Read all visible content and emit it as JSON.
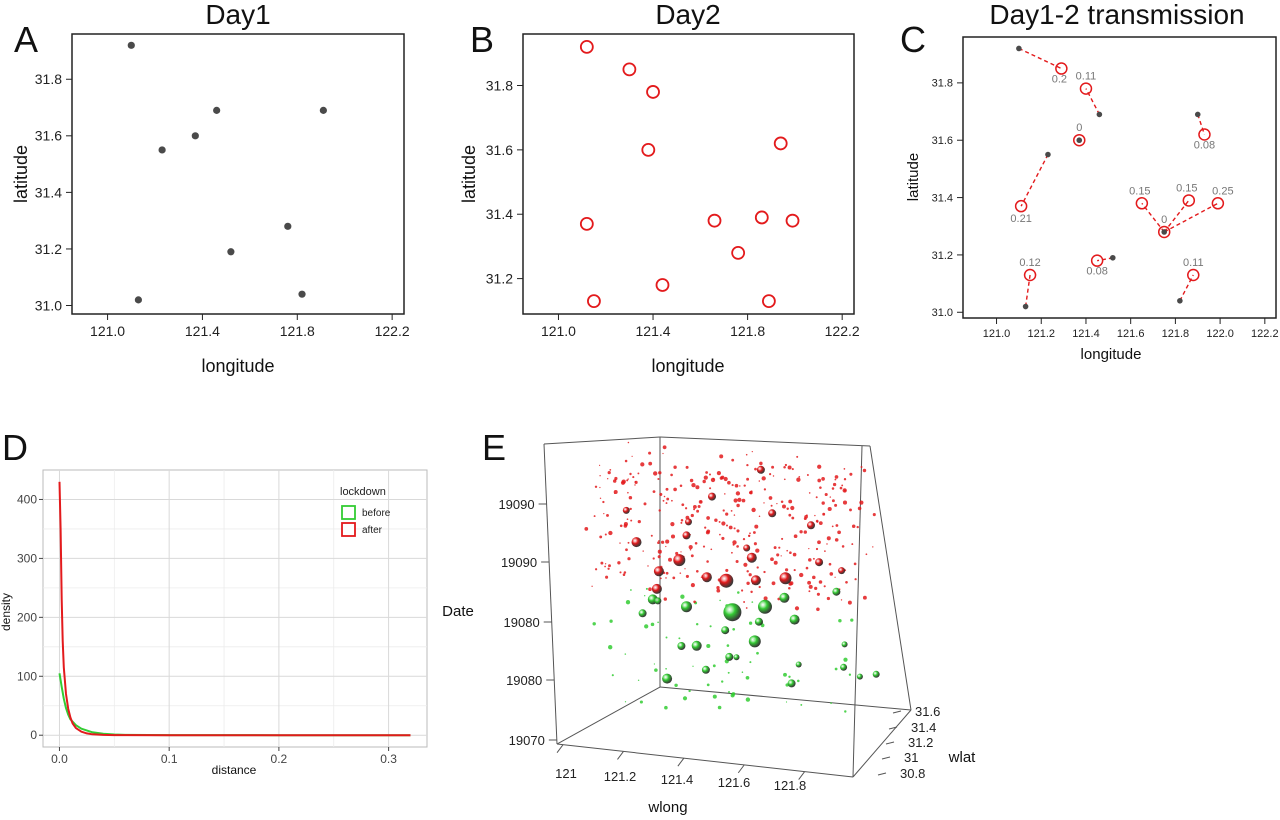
{
  "panels": {
    "A": {
      "letter": "A",
      "title": "Day1",
      "xlabel": "longitude",
      "ylabel": "latitude"
    },
    "B": {
      "letter": "B",
      "title": "Day2",
      "xlabel": "longitude",
      "ylabel": "latitude"
    },
    "C": {
      "letter": "C",
      "title": "Day1-2 transmission",
      "xlabel": "longitude",
      "ylabel": "latitude"
    },
    "D": {
      "letter": "D",
      "xlabel": "distance",
      "ylabel": "density"
    },
    "E": {
      "letter": "E",
      "xlabel": "wlong",
      "ylabel": "wlat",
      "zlabel": "Date"
    }
  },
  "colors": {
    "day1": "#4a4a4a",
    "day2": "#e31a1c",
    "before": "#33cc33",
    "after": "#e31a1c",
    "grid": "#d9d9d9"
  },
  "chart_data": [
    {
      "id": "A",
      "type": "scatter",
      "title": "Day1",
      "xlabel": "longitude",
      "ylabel": "latitude",
      "xlim": [
        120.85,
        122.25
      ],
      "ylim": [
        30.97,
        31.96
      ],
      "xticks": [
        "121.0",
        "121.4",
        "121.8",
        "122.2"
      ],
      "xtick_values": [
        121.0,
        121.4,
        121.8,
        122.2
      ],
      "yticks": [
        "31.0",
        "31.2",
        "31.4",
        "31.6",
        "31.8"
      ],
      "ytick_values": [
        31.0,
        31.2,
        31.4,
        31.6,
        31.8
      ],
      "grid": false,
      "points": [
        [
          121.1,
          31.92
        ],
        [
          121.46,
          31.69
        ],
        [
          121.91,
          31.69
        ],
        [
          121.37,
          31.6
        ],
        [
          121.23,
          31.55
        ],
        [
          121.76,
          31.28
        ],
        [
          121.52,
          31.19
        ],
        [
          121.82,
          31.04
        ],
        [
          121.13,
          31.02
        ]
      ]
    },
    {
      "id": "B",
      "type": "scatter",
      "title": "Day2",
      "xlabel": "longitude",
      "ylabel": "latitude",
      "xlim": [
        120.85,
        122.25
      ],
      "ylim": [
        31.09,
        31.96
      ],
      "xticks": [
        "121.0",
        "121.4",
        "121.8",
        "122.2"
      ],
      "xtick_values": [
        121.0,
        121.4,
        121.8,
        122.2
      ],
      "yticks": [
        "31.2",
        "31.4",
        "31.6",
        "31.8"
      ],
      "ytick_values": [
        31.2,
        31.4,
        31.6,
        31.8
      ],
      "grid": false,
      "points": [
        [
          121.12,
          31.92
        ],
        [
          121.3,
          31.85
        ],
        [
          121.4,
          31.78
        ],
        [
          121.38,
          31.6
        ],
        [
          121.94,
          31.62
        ],
        [
          121.12,
          31.37
        ],
        [
          121.66,
          31.38
        ],
        [
          121.86,
          31.39
        ],
        [
          121.99,
          31.38
        ],
        [
          121.76,
          31.28
        ],
        [
          121.44,
          31.18
        ],
        [
          121.15,
          31.13
        ],
        [
          121.89,
          31.13
        ]
      ]
    },
    {
      "id": "C",
      "type": "scatter",
      "title": "Day1-2 transmission",
      "xlabel": "longitude",
      "ylabel": "latitude",
      "xlim": [
        120.85,
        122.25
      ],
      "ylim": [
        30.98,
        31.96
      ],
      "xticks": [
        "121.0",
        "121.2",
        "121.4",
        "121.6",
        "121.8",
        "122.0",
        "122.2"
      ],
      "xtick_values": [
        121.0,
        121.2,
        121.4,
        121.6,
        121.8,
        122.0,
        122.2
      ],
      "yticks": [
        "31.0",
        "31.2",
        "31.4",
        "31.6",
        "31.8"
      ],
      "ytick_values": [
        31.0,
        31.2,
        31.4,
        31.6,
        31.8
      ],
      "grid": false,
      "sources": [
        [
          121.1,
          31.92
        ],
        [
          121.46,
          31.69
        ],
        [
          121.9,
          31.69
        ],
        [
          121.37,
          31.6
        ],
        [
          121.23,
          31.55
        ],
        [
          121.75,
          31.28
        ],
        [
          121.52,
          31.19
        ],
        [
          121.82,
          31.04
        ],
        [
          121.13,
          31.02
        ]
      ],
      "links": [
        {
          "from": [
            121.1,
            31.92
          ],
          "to": [
            121.29,
            31.85
          ],
          "label": "0.2"
        },
        {
          "from": [
            121.46,
            31.69
          ],
          "to": [
            121.4,
            31.78
          ],
          "label": "0.11"
        },
        {
          "from": [
            121.37,
            31.6
          ],
          "to": [
            121.37,
            31.6
          ],
          "label": "0"
        },
        {
          "from": [
            121.9,
            31.69
          ],
          "to": [
            121.93,
            31.62
          ],
          "label": "0.08"
        },
        {
          "from": [
            121.23,
            31.55
          ],
          "to": [
            121.11,
            31.37
          ],
          "label": "0.21"
        },
        {
          "from": [
            121.75,
            31.28
          ],
          "to": [
            121.65,
            31.38
          ],
          "label": "0.15"
        },
        {
          "from": [
            121.75,
            31.28
          ],
          "to": [
            121.86,
            31.39
          ],
          "label": "0.15"
        },
        {
          "from": [
            121.75,
            31.28
          ],
          "to": [
            121.99,
            31.38
          ],
          "label": "0.25"
        },
        {
          "from": [
            121.75,
            31.28
          ],
          "to": [
            121.75,
            31.28
          ],
          "label": "0"
        },
        {
          "from": [
            121.52,
            31.19
          ],
          "to": [
            121.45,
            31.18
          ],
          "label": "0.08"
        },
        {
          "from": [
            121.13,
            31.02
          ],
          "to": [
            121.15,
            31.13
          ],
          "label": "0.12"
        },
        {
          "from": [
            121.82,
            31.04
          ],
          "to": [
            121.88,
            31.13
          ],
          "label": "0.11"
        }
      ]
    },
    {
      "id": "D",
      "type": "line",
      "xlabel": "distance",
      "ylabel": "density",
      "xlim": [
        -0.015,
        0.335
      ],
      "ylim": [
        -20,
        450
      ],
      "xticks": [
        "0.0",
        "0.1",
        "0.2",
        "0.3"
      ],
      "xtick_values": [
        0.0,
        0.1,
        0.2,
        0.3
      ],
      "yticks": [
        "0",
        "100",
        "200",
        "300",
        "400"
      ],
      "ytick_values": [
        0,
        100,
        200,
        300,
        400
      ],
      "grid": true,
      "legend": {
        "title": "lockdown",
        "placement": "top-right",
        "entries": [
          "before",
          "after"
        ]
      },
      "series": [
        {
          "name": "before",
          "x": [
            0.0,
            0.002,
            0.004,
            0.006,
            0.008,
            0.01,
            0.015,
            0.02,
            0.03,
            0.04,
            0.05,
            0.06,
            0.1,
            0.2,
            0.3,
            0.32
          ],
          "y": [
            105,
            82,
            62,
            46,
            35,
            27,
            17,
            11,
            5,
            2.5,
            1.2,
            0.5,
            0.2,
            0.1,
            0.1,
            0.1
          ]
        },
        {
          "name": "after",
          "x": [
            0.0,
            0.001,
            0.002,
            0.003,
            0.004,
            0.006,
            0.008,
            0.01,
            0.012,
            0.015,
            0.02,
            0.025,
            0.03,
            0.04,
            0.05,
            0.1,
            0.2,
            0.3,
            0.32
          ],
          "y": [
            430,
            350,
            230,
            160,
            115,
            70,
            45,
            30,
            20,
            12,
            6,
            3,
            1.5,
            0.5,
            0.2,
            0.1,
            0.1,
            0.1,
            0.1
          ]
        }
      ]
    },
    {
      "id": "E",
      "type": "scatter",
      "xlabel": "wlong",
      "ylabel": "wlat",
      "zlabel": "Date",
      "xticks": [
        "121",
        "121.2",
        "121.4",
        "121.6",
        "121.8"
      ],
      "xtick_values": [
        121.0,
        121.2,
        121.4,
        121.6,
        121.8
      ],
      "yticks": [
        "30.8",
        "31",
        "31.2",
        "31.4",
        "31.6"
      ],
      "ytick_values": [
        30.8,
        31.0,
        31.2,
        31.4,
        31.6
      ],
      "zticks": [
        "19070",
        "19080",
        "19080",
        "19090",
        "19090"
      ],
      "ztick_values": [
        19070,
        19077.5,
        19085,
        19092.5,
        19100
      ],
      "zlim": [
        19068,
        19103
      ],
      "series": [
        {
          "name": "before",
          "points": [
            [
              121.5,
              31.2,
              19083.7,
              9
            ],
            [
              121.6,
              31.3,
              19084.2,
              7
            ],
            [
              121.35,
              31.1,
              19084.4,
              5.5
            ],
            [
              121.2,
              31.2,
              19084.5,
              5
            ],
            [
              121.7,
              31.35,
              19082.7,
              5
            ],
            [
              121.4,
              31.05,
              19080,
              5
            ],
            [
              121.55,
              31.35,
              19079.7,
              6
            ],
            [
              121.15,
              31.25,
              19082.5,
              4
            ],
            [
              121.65,
              31.4,
              19085,
              5
            ],
            [
              121.45,
              31.3,
              19081,
              4
            ],
            [
              121.8,
              31.6,
              19085.3,
              4
            ],
            [
              121.6,
              31.2,
              19082.8,
              4
            ],
            [
              121.5,
              31.15,
              19078.5,
              4
            ],
            [
              121.25,
              31.45,
              19078,
              4
            ],
            [
              121.3,
              31.0,
              19076,
              5
            ],
            [
              121.4,
              31.2,
              19076.5,
              4
            ],
            [
              121.7,
              31.3,
              19075.2,
              4
            ],
            [
              121.85,
              31.5,
              19076.7,
              3.5
            ],
            [
              121.95,
              31.6,
              19075.7,
              3.5
            ],
            [
              121.9,
              31.55,
              19075.5,
              3
            ],
            [
              121.55,
              31.05,
              19079,
              3
            ],
            [
              121.15,
              31.5,
              19083,
              3.5
            ],
            [
              121.75,
              31.2,
              19078,
              3
            ],
            [
              121.9,
              31.3,
              19080.4,
              3
            ]
          ]
        },
        {
          "name": "after",
          "points": [
            [
              121.5,
              31.1,
              19087.9,
              7
            ],
            [
              121.7,
              31.2,
              19088.3,
              6
            ],
            [
              121.6,
              31.15,
              19088,
              5
            ],
            [
              121.3,
              31.2,
              19089.5,
              6
            ],
            [
              121.45,
              31.0,
              19088.6,
              5
            ],
            [
              121.2,
              31.3,
              19087.5,
              5
            ],
            [
              121.25,
              31.05,
              19086.5,
              5
            ],
            [
              121.15,
              31.15,
              19091.5,
              5
            ],
            [
              121.85,
              31.1,
              19091,
              4
            ],
            [
              121.55,
              31.3,
              19090,
              5
            ],
            [
              121.75,
              31.4,
              19094,
              4
            ],
            [
              121.65,
              31.2,
              19096,
              4
            ],
            [
              121.35,
              31.1,
              19093,
              4
            ],
            [
              121.4,
              31.3,
              19097,
              4
            ],
            [
              121.55,
              31.45,
              19100,
              4
            ],
            [
              121.1,
              31.2,
              19095,
              3.5
            ],
            [
              121.6,
              31.0,
              19092.5,
              3.5
            ],
            [
              121.3,
              31.35,
              19093.5,
              3.5
            ],
            [
              121.9,
              31.25,
              19089.5,
              3.5
            ]
          ]
        }
      ]
    }
  ]
}
